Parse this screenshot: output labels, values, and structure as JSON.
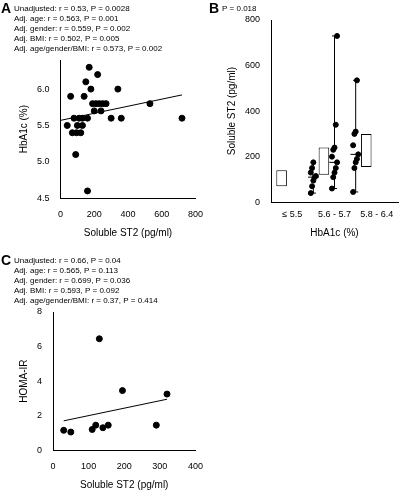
{
  "chart_data": [
    {
      "type": "scatter",
      "panel": "A",
      "annotations": [
        "Unadjusted: r = 0.53, P = 0.0028",
        "Adj. age: r = 0.563, P = 0.001",
        "Adj. gender: r = 0.559, P = 0.002",
        "Adj. BMI: r = 0.502, P = 0.005",
        "Adj. age/gender/BMI: r = 0.573, P = 0.002"
      ],
      "x_label": "Soluble ST2 (pg/ml)",
      "y_label": "HbA1c (%)",
      "xlim": [
        0,
        800
      ],
      "xticks": [
        0,
        200,
        400,
        600,
        800
      ],
      "ylim": [
        4.5,
        6.4
      ],
      "yticks": [
        4.5,
        {
          "value": 5,
          "label": "5.0"
        },
        5.5,
        {
          "value": 6,
          "label": "6.0"
        }
      ],
      "grid": false,
      "color": "#000000",
      "points": {
        "x": [
          40,
          60,
          70,
          80,
          90,
          95,
          100,
          110,
          120,
          130,
          130,
          140,
          150,
          160,
          160,
          170,
          180,
          190,
          200,
          210,
          220,
          230,
          240,
          250,
          270,
          300,
          340,
          360,
          530,
          720
        ],
        "y": [
          5.5,
          5.9,
          5.4,
          5.6,
          5.1,
          5.4,
          5.5,
          5.6,
          5.4,
          5.5,
          5.6,
          5.9,
          6.1,
          4.6,
          5.6,
          6.3,
          6.0,
          5.8,
          5.7,
          5.8,
          6.2,
          5.8,
          5.7,
          5.8,
          5.8,
          5.6,
          6.0,
          5.6,
          5.8,
          5.6
        ]
      },
      "trend_line": {
        "x": [
          0,
          720
        ],
        "y": [
          5.57,
          5.92
        ]
      }
    },
    {
      "type": "box",
      "panel": "B",
      "annotations": [
        "P = 0.018"
      ],
      "x_label": "HbA1c (%)",
      "y_label": "Soluble ST2 (pg/ml)",
      "categories": [
        "≤ 5.5",
        "5.6 - 5.7",
        "5.8 - 6.4"
      ],
      "ylim": [
        0,
        800
      ],
      "yticks": [
        0,
        200,
        400,
        600,
        800
      ],
      "grid": false,
      "color": "#000000",
      "boxes": [
        {
          "min": 40,
          "q1": 70,
          "median": 110,
          "q3": 140,
          "max": 175
        },
        {
          "min": 60,
          "q1": 120,
          "median": 175,
          "q3": 240,
          "max": 730
        },
        {
          "min": 45,
          "q1": 155,
          "median": 210,
          "q3": 300,
          "max": 535
        }
      ],
      "points": [
        [
          40,
          70,
          95,
          110,
          115,
          130,
          150,
          175
        ],
        [
          60,
          110,
          130,
          150,
          175,
          200,
          230,
          240,
          340,
          730
        ],
        [
          45,
          150,
          175,
          190,
          210,
          250,
          300,
          310,
          535
        ]
      ]
    },
    {
      "type": "scatter",
      "panel": "C",
      "annotations": [
        "Unadjusted: r = 0.66, P = 0.04",
        "Adj. age: r = 0.565, P = 0.113",
        "Adj. gender: r = 0.699, P = 0.036",
        "Adj. BMI: r = 0.593, P = 0.092",
        "Adj. age/gender/BMI: r = 0.37, P = 0.414"
      ],
      "x_label": "Soluble ST2 (pg/ml)",
      "y_label": "HOMA-IR",
      "xlim": [
        0,
        400
      ],
      "xticks": [
        0,
        100,
        200,
        300,
        400
      ],
      "ylim": [
        0,
        8
      ],
      "yticks": [
        0,
        2,
        4,
        6,
        8
      ],
      "grid": false,
      "color": "#000000",
      "points": {
        "x": [
          30,
          50,
          110,
          120,
          130,
          140,
          155,
          195,
          290,
          320
        ],
        "y": [
          1.15,
          1.05,
          1.2,
          1.45,
          6.45,
          1.3,
          1.45,
          3.45,
          1.45,
          3.25
        ]
      },
      "trend_line": {
        "x": [
          30,
          320
        ],
        "y": [
          1.7,
          2.95
        ]
      }
    }
  ]
}
